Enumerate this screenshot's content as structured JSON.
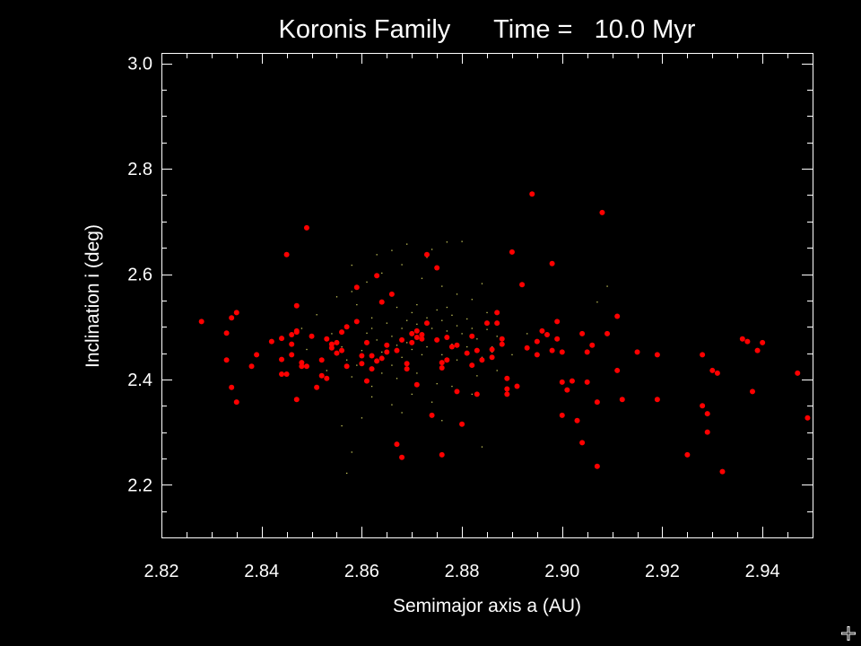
{
  "chart_data": {
    "type": "scatter",
    "title": "Koronis Family      Time =   10.0 Myr",
    "xlabel": "Semimajor axis a (AU)",
    "ylabel": "Inclination i (deg)",
    "xlim": [
      2.82,
      2.95
    ],
    "ylim": [
      2.1,
      3.02
    ],
    "x_ticks": [
      2.82,
      2.84,
      2.86,
      2.88,
      2.9,
      2.92,
      2.94
    ],
    "x_tick_labels": [
      "2.82",
      "2.84",
      "2.86",
      "2.88",
      "2.90",
      "2.92",
      "2.94"
    ],
    "y_ticks": [
      2.2,
      2.4,
      2.6,
      2.8,
      3.0
    ],
    "y_tick_labels": [
      "2.2",
      "2.4",
      "2.6",
      "2.8",
      "3.0"
    ],
    "grid": false,
    "background_color": "#000000",
    "axis_color": "#ffffff",
    "series": [
      {
        "marker": "filled-circle",
        "color": "#ff0000",
        "points": [
          [
            2.828,
            2.51
          ],
          [
            2.833,
            2.488
          ],
          [
            2.833,
            2.437
          ],
          [
            2.834,
            2.385
          ],
          [
            2.834,
            2.517
          ],
          [
            2.835,
            2.527
          ],
          [
            2.835,
            2.357
          ],
          [
            2.838,
            2.425
          ],
          [
            2.839,
            2.447
          ],
          [
            2.842,
            2.472
          ],
          [
            2.844,
            2.438
          ],
          [
            2.844,
            2.41
          ],
          [
            2.844,
            2.478
          ],
          [
            2.845,
            2.41
          ],
          [
            2.845,
            2.637
          ],
          [
            2.846,
            2.485
          ],
          [
            2.846,
            2.467
          ],
          [
            2.846,
            2.447
          ],
          [
            2.847,
            2.49
          ],
          [
            2.847,
            2.54
          ],
          [
            2.847,
            2.492
          ],
          [
            2.847,
            2.362
          ],
          [
            2.848,
            2.432
          ],
          [
            2.848,
            2.425
          ],
          [
            2.849,
            2.688
          ],
          [
            2.849,
            2.425
          ],
          [
            2.85,
            2.482
          ],
          [
            2.851,
            2.385
          ],
          [
            2.852,
            2.437
          ],
          [
            2.852,
            2.407
          ],
          [
            2.853,
            2.477
          ],
          [
            2.853,
            2.402
          ],
          [
            2.854,
            2.46
          ],
          [
            2.854,
            2.467
          ],
          [
            2.855,
            2.47
          ],
          [
            2.855,
            2.45
          ],
          [
            2.856,
            2.49
          ],
          [
            2.856,
            2.455
          ],
          [
            2.857,
            2.5
          ],
          [
            2.857,
            2.425
          ],
          [
            2.859,
            2.575
          ],
          [
            2.859,
            2.51
          ],
          [
            2.86,
            2.445
          ],
          [
            2.86,
            2.43
          ],
          [
            2.861,
            2.47
          ],
          [
            2.861,
            2.397
          ],
          [
            2.862,
            2.445
          ],
          [
            2.862,
            2.42
          ],
          [
            2.863,
            2.435
          ],
          [
            2.863,
            2.597
          ],
          [
            2.864,
            2.547
          ],
          [
            2.864,
            2.44
          ],
          [
            2.865,
            2.452
          ],
          [
            2.865,
            2.465
          ],
          [
            2.866,
            2.562
          ],
          [
            2.867,
            2.277
          ],
          [
            2.867,
            2.455
          ],
          [
            2.868,
            2.475
          ],
          [
            2.868,
            2.252
          ],
          [
            2.869,
            2.42
          ],
          [
            2.869,
            2.43
          ],
          [
            2.87,
            2.487
          ],
          [
            2.87,
            2.47
          ],
          [
            2.871,
            2.48
          ],
          [
            2.871,
            2.39
          ],
          [
            2.871,
            2.492
          ],
          [
            2.872,
            2.477
          ],
          [
            2.872,
            2.485
          ],
          [
            2.873,
            2.637
          ],
          [
            2.873,
            2.507
          ],
          [
            2.874,
            2.332
          ],
          [
            2.875,
            2.612
          ],
          [
            2.875,
            2.475
          ],
          [
            2.876,
            2.432
          ],
          [
            2.876,
            2.257
          ],
          [
            2.876,
            2.422
          ],
          [
            2.877,
            2.437
          ],
          [
            2.877,
            2.48
          ],
          [
            2.878,
            2.462
          ],
          [
            2.879,
            2.377
          ],
          [
            2.879,
            2.465
          ],
          [
            2.88,
            2.315
          ],
          [
            2.881,
            2.45
          ],
          [
            2.882,
            2.482
          ],
          [
            2.882,
            2.427
          ],
          [
            2.883,
            2.455
          ],
          [
            2.883,
            2.372
          ],
          [
            2.884,
            2.437
          ],
          [
            2.885,
            2.507
          ],
          [
            2.886,
            2.442
          ],
          [
            2.886,
            2.457
          ],
          [
            2.887,
            2.507
          ],
          [
            2.887,
            2.527
          ],
          [
            2.888,
            2.467
          ],
          [
            2.888,
            2.477
          ],
          [
            2.889,
            2.372
          ],
          [
            2.889,
            2.402
          ],
          [
            2.889,
            2.382
          ],
          [
            2.89,
            2.642
          ],
          [
            2.891,
            2.387
          ],
          [
            2.892,
            2.58
          ],
          [
            2.893,
            2.46
          ],
          [
            2.894,
            2.752
          ],
          [
            2.895,
            2.472
          ],
          [
            2.895,
            2.447
          ],
          [
            2.896,
            2.492
          ],
          [
            2.897,
            2.485
          ],
          [
            2.898,
            2.62
          ],
          [
            2.898,
            2.455
          ],
          [
            2.899,
            2.51
          ],
          [
            2.899,
            2.477
          ],
          [
            2.9,
            2.395
          ],
          [
            2.9,
            2.452
          ],
          [
            2.9,
            2.332
          ],
          [
            2.901,
            2.38
          ],
          [
            2.902,
            2.397
          ],
          [
            2.903,
            2.322
          ],
          [
            2.904,
            2.28
          ],
          [
            2.904,
            2.487
          ],
          [
            2.905,
            2.452
          ],
          [
            2.905,
            2.395
          ],
          [
            2.906,
            2.465
          ],
          [
            2.907,
            2.235
          ],
          [
            2.907,
            2.357
          ],
          [
            2.908,
            2.717
          ],
          [
            2.909,
            2.487
          ],
          [
            2.911,
            2.52
          ],
          [
            2.911,
            2.417
          ],
          [
            2.912,
            2.362
          ],
          [
            2.915,
            2.452
          ],
          [
            2.919,
            2.447
          ],
          [
            2.919,
            2.362
          ],
          [
            2.925,
            2.257
          ],
          [
            2.928,
            2.447
          ],
          [
            2.928,
            2.35
          ],
          [
            2.929,
            2.3
          ],
          [
            2.929,
            2.335
          ],
          [
            2.93,
            2.417
          ],
          [
            2.931,
            2.412
          ],
          [
            2.932,
            2.225
          ],
          [
            2.936,
            2.477
          ],
          [
            2.937,
            2.472
          ],
          [
            2.938,
            2.377
          ],
          [
            2.939,
            2.455
          ],
          [
            2.94,
            2.47
          ],
          [
            2.947,
            2.412
          ],
          [
            2.949,
            2.327
          ]
        ]
      },
      {
        "marker": "dot",
        "color": "#c8c85a",
        "points": [
          [
            2.851,
            2.523
          ],
          [
            2.854,
            2.487
          ],
          [
            2.856,
            2.462
          ],
          [
            2.857,
            2.437
          ],
          [
            2.858,
            2.405
          ],
          [
            2.859,
            2.542
          ],
          [
            2.86,
            2.455
          ],
          [
            2.861,
            2.488
          ],
          [
            2.862,
            2.517
          ],
          [
            2.862,
            2.387
          ],
          [
            2.863,
            2.475
          ],
          [
            2.864,
            2.452
          ],
          [
            2.864,
            2.547
          ],
          [
            2.865,
            2.507
          ],
          [
            2.866,
            2.427
          ],
          [
            2.866,
            2.482
          ],
          [
            2.867,
            2.465
          ],
          [
            2.867,
            2.537
          ],
          [
            2.868,
            2.497
          ],
          [
            2.868,
            2.442
          ],
          [
            2.869,
            2.512
          ],
          [
            2.869,
            2.47
          ],
          [
            2.87,
            2.527
          ],
          [
            2.87,
            2.457
          ],
          [
            2.871,
            2.505
          ],
          [
            2.871,
            2.542
          ],
          [
            2.872,
            2.482
          ],
          [
            2.872,
            2.447
          ],
          [
            2.873,
            2.517
          ],
          [
            2.873,
            2.462
          ],
          [
            2.874,
            2.497
          ],
          [
            2.875,
            2.532
          ],
          [
            2.875,
            2.477
          ],
          [
            2.876,
            2.512
          ],
          [
            2.876,
            2.447
          ],
          [
            2.877,
            2.492
          ],
          [
            2.878,
            2.522
          ],
          [
            2.878,
            2.467
          ],
          [
            2.879,
            2.502
          ],
          [
            2.879,
            2.437
          ],
          [
            2.88,
            2.487
          ],
          [
            2.881,
            2.515
          ],
          [
            2.881,
            2.462
          ],
          [
            2.882,
            2.497
          ],
          [
            2.883,
            2.477
          ],
          [
            2.884,
            2.442
          ],
          [
            2.885,
            2.495
          ],
          [
            2.886,
            2.462
          ],
          [
            2.887,
            2.482
          ],
          [
            2.858,
            2.567
          ],
          [
            2.861,
            2.585
          ],
          [
            2.864,
            2.602
          ],
          [
            2.868,
            2.618
          ],
          [
            2.872,
            2.592
          ],
          [
            2.876,
            2.577
          ],
          [
            2.879,
            2.562
          ],
          [
            2.882,
            2.552
          ],
          [
            2.885,
            2.527
          ],
          [
            2.866,
            2.645
          ],
          [
            2.873,
            2.632
          ],
          [
            2.877,
            2.661
          ],
          [
            2.869,
            2.657
          ],
          [
            2.862,
            2.367
          ],
          [
            2.866,
            2.352
          ],
          [
            2.87,
            2.372
          ],
          [
            2.874,
            2.357
          ],
          [
            2.878,
            2.387
          ],
          [
            2.882,
            2.372
          ],
          [
            2.86,
            2.327
          ],
          [
            2.868,
            2.337
          ],
          [
            2.876,
            2.322
          ],
          [
            2.853,
            2.417
          ],
          [
            2.855,
            2.557
          ],
          [
            2.884,
            2.582
          ],
          [
            2.887,
            2.417
          ],
          [
            2.856,
            2.312
          ],
          [
            2.858,
            2.262
          ],
          [
            2.857,
            2.222
          ],
          [
            2.884,
            2.272
          ],
          [
            2.89,
            2.447
          ],
          [
            2.893,
            2.487
          ],
          [
            2.849,
            2.457
          ],
          [
            2.848,
            2.497
          ],
          [
            2.858,
            2.617
          ],
          [
            2.863,
            2.637
          ],
          [
            2.874,
            2.647
          ],
          [
            2.88,
            2.662
          ],
          [
            2.907,
            2.547
          ],
          [
            2.909,
            2.577
          ],
          [
            2.877,
            2.537
          ],
          [
            2.871,
            2.412
          ],
          [
            2.867,
            2.402
          ],
          [
            2.875,
            2.392
          ],
          [
            2.864,
            2.412
          ],
          [
            2.883,
            2.407
          ],
          [
            2.886,
            2.452
          ],
          [
            2.859,
            2.427
          ],
          [
            2.862,
            2.497
          ]
        ]
      }
    ]
  }
}
